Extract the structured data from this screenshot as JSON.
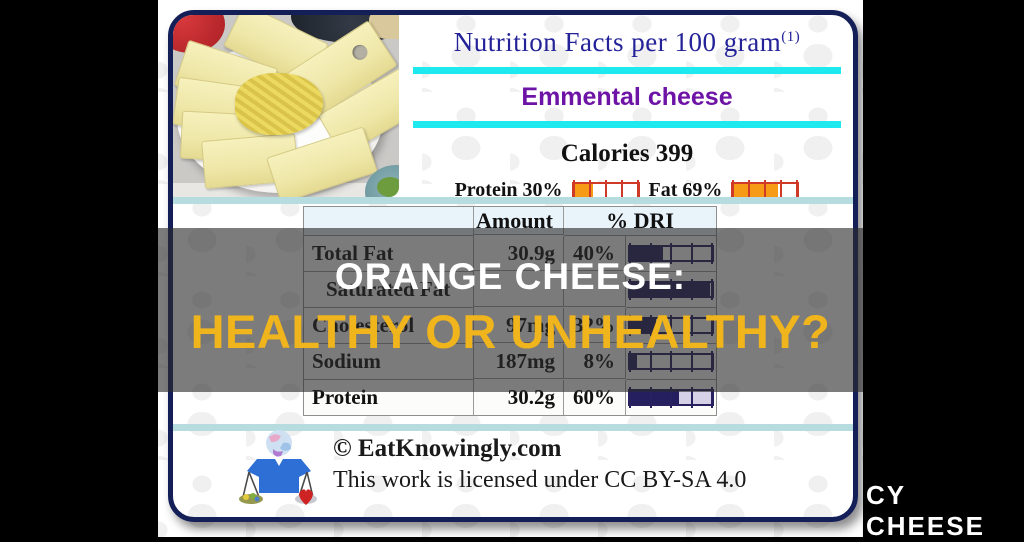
{
  "brand": "CY CHEESE",
  "overlay": {
    "line1": "ORANGE CHEESE:",
    "line2": "HEALTHY OR UNHEALTHY?"
  },
  "card": {
    "title": "Nutrition Facts per 100 gram",
    "title_footnote": "(1)",
    "subtitle": "Emmental cheese",
    "calories": "Calories 399",
    "macros": [
      {
        "label": "Protein 30%",
        "fill": 0.3
      },
      {
        "label": "Fat 69%",
        "fill": 0.69
      }
    ],
    "table": {
      "header_blank": "",
      "header_amount": "Amount",
      "header_dri": "% DRI",
      "rows": [
        {
          "label": "Total Fat",
          "amount": "30.9g",
          "dri": "40%",
          "fill": 0.4
        },
        {
          "label": "Saturated Fat",
          "amount": "",
          "dri": "",
          "fill": 0.97
        },
        {
          "label": "Cholesterol",
          "amount": "97mg",
          "dri": "32%",
          "fill": 0.32
        },
        {
          "label": "Sodium",
          "amount": "187mg",
          "dri": "8%",
          "fill": 0.08
        },
        {
          "label": "Protein",
          "amount": "30.2g",
          "dri": "60%",
          "fill": 0.6
        }
      ]
    },
    "footer": {
      "copyright": "© EatKnowingly.com",
      "license": "This work is licensed under CC BY-SA 4.0"
    }
  },
  "colors": {
    "card_border": "#141f58",
    "title_blue": "#232299",
    "subtitle_purple": "#6d13a5",
    "divider_cyan": "#1de9ee",
    "band_teal": "#b6dcdf",
    "gauge_outline_red": "#cf3a28",
    "gauge_fill_orange": "#f79b17",
    "gauge_navy": "#251f60",
    "overlay_yellow": "#f0b41c",
    "background_black": "#000000"
  }
}
